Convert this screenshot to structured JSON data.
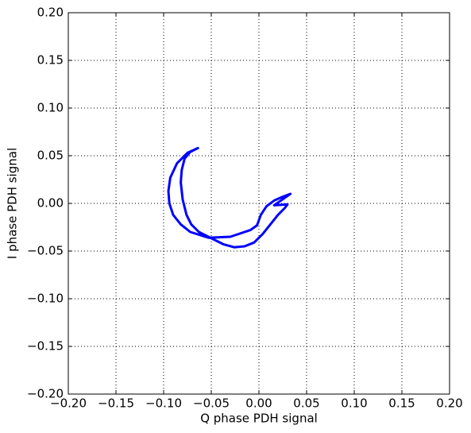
{
  "chart_data": {
    "type": "line",
    "xlabel": "Q phase PDH signal",
    "ylabel": "I phase PDH signal",
    "x": [
      -0.064,
      -0.075,
      -0.086,
      -0.093,
      -0.095,
      -0.094,
      -0.09,
      -0.082,
      -0.072,
      -0.053,
      -0.03,
      -0.009,
      -0.002,
      0.002,
      0.008,
      0.016,
      0.025,
      0.033,
      0.016,
      0.03,
      0.027,
      0.02,
      0.012,
      0.004,
      -0.005,
      -0.015,
      -0.026,
      -0.037,
      -0.047,
      -0.063,
      -0.071,
      -0.076,
      -0.08,
      -0.082,
      -0.081,
      -0.078,
      -0.072,
      -0.064
    ],
    "values": [
      0.058,
      0.053,
      0.042,
      0.027,
      0.013,
      0.0,
      -0.012,
      -0.022,
      -0.03,
      -0.036,
      -0.035,
      -0.028,
      -0.023,
      -0.012,
      -0.003,
      0.003,
      0.007,
      0.01,
      -0.002,
      -0.001,
      -0.005,
      -0.012,
      -0.022,
      -0.032,
      -0.041,
      -0.045,
      -0.046,
      -0.043,
      -0.038,
      -0.03,
      -0.022,
      -0.012,
      0.004,
      0.022,
      0.035,
      0.047,
      0.054,
      0.058
    ],
    "color": "#0000ff",
    "xlim": [
      -0.2,
      0.2
    ],
    "ylim": [
      -0.2,
      0.2
    ],
    "xticks": [
      {
        "value": -0.2,
        "label": "−0.20"
      },
      {
        "value": -0.15,
        "label": "−0.15"
      },
      {
        "value": -0.1,
        "label": "−0.10"
      },
      {
        "value": -0.05,
        "label": "−0.05"
      },
      {
        "value": 0,
        "label": "0.00"
      },
      {
        "value": 0.05,
        "label": "0.05"
      },
      {
        "value": 0.1,
        "label": "0.10"
      },
      {
        "value": 0.15,
        "label": "0.15"
      },
      {
        "value": 0.2,
        "label": "0.20"
      }
    ],
    "yticks": [
      {
        "value": -0.2,
        "label": "−0.20"
      },
      {
        "value": -0.15,
        "label": "−0.15"
      },
      {
        "value": -0.1,
        "label": "−0.10"
      },
      {
        "value": -0.05,
        "label": "−0.05"
      },
      {
        "value": 0,
        "label": "0.00"
      },
      {
        "value": 0.05,
        "label": "0.05"
      },
      {
        "value": 0.1,
        "label": "0.10"
      },
      {
        "value": 0.15,
        "label": "0.15"
      },
      {
        "value": 0.2,
        "label": "0.20"
      }
    ],
    "grid": true
  }
}
